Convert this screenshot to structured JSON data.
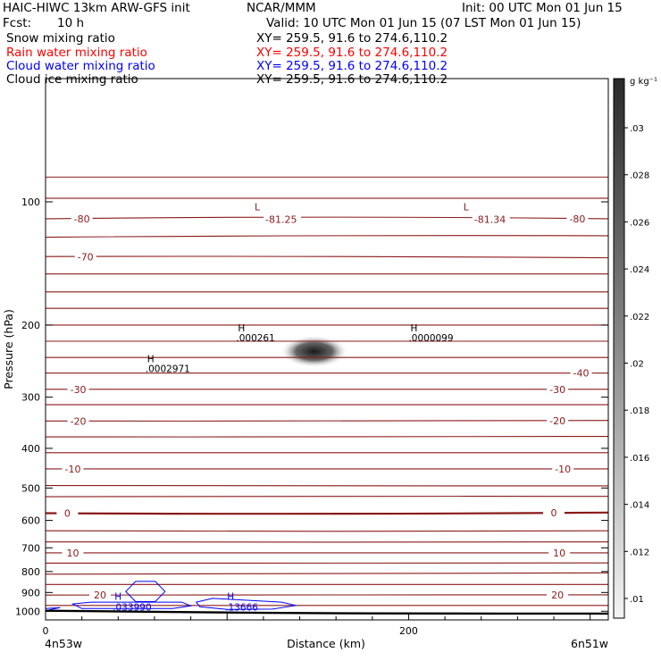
{
  "header": {
    "model": "HAIC-HIWC 13km ARW-GFS init",
    "org": "NCAR/MMM",
    "init": "Init: 00 UTC Mon 01 Jun 15",
    "fcst_label": "Fcst:",
    "fcst_value": "10 h",
    "valid": "Valid: 10 UTC Mon 01 Jun 15 (07 LST Mon 01 Jun 15)"
  },
  "fields": [
    {
      "name": "Snow mixing ratio",
      "xy": "XY= 259.5, 91.6 to 274.6,110.2",
      "color": "#000000"
    },
    {
      "name": "Rain water mixing ratio",
      "xy": "XY= 259.5, 91.6 to 274.6,110.2",
      "color": "#ff0000"
    },
    {
      "name": "Cloud water mixing ratio",
      "xy": "XY= 259.5, 91.6 to 274.6,110.2",
      "color": "#0000ff"
    },
    {
      "name": "Cloud ice mixing ratio",
      "xy": "XY= 259.5, 91.6 to 274.6,110.2",
      "color": "#000000"
    }
  ],
  "chart_data": {
    "type": "contour cross-section",
    "xlabel": "Distance (km)",
    "ylabel": "Pressure (hPa)",
    "xlim": [
      0,
      310
    ],
    "ylim": [
      1050,
      50
    ],
    "y_scale": "log",
    "x_ticks": [
      {
        "v": 0,
        "label": "0"
      },
      {
        "v": 200,
        "label": "200"
      }
    ],
    "x_endpoints": {
      "left": "4n53w",
      "right": "6n51w"
    },
    "y_ticks": [
      100,
      200,
      300,
      400,
      500,
      600,
      700,
      800,
      900,
      1000
    ],
    "temperature_color": "#8b1a1a",
    "temperature_isotherms": [
      {
        "p": [
          87,
          87,
          87
        ]
      },
      {
        "p": [
          98,
          98,
          98
        ]
      },
      {
        "p": [
          110,
          109,
          110
        ],
        "label": "-80",
        "label_x": [
          20,
          293
        ]
      },
      {
        "p": [
          122,
          121,
          121
        ]
      },
      {
        "p": [
          136,
          136,
          137
        ],
        "label": "-70",
        "label_x": [
          22
        ]
      },
      {
        "p": [
          150,
          150,
          150
        ]
      },
      {
        "p": [
          166,
          166,
          166
        ]
      },
      {
        "p": [
          182,
          182,
          182
        ]
      },
      {
        "p": [
          200,
          200,
          200
        ]
      },
      {
        "p": [
          219,
          219,
          219
        ]
      },
      {
        "p": [
          240,
          240,
          240
        ]
      },
      {
        "p": [
          262,
          262,
          262
        ],
        "label": "-40",
        "label_x": [
          295
        ]
      },
      {
        "p": [
          287,
          287,
          287
        ],
        "label": "-30",
        "label_x": [
          18,
          282
        ]
      },
      {
        "p": [
          313,
          313,
          313
        ]
      },
      {
        "p": [
          343,
          343,
          342
        ],
        "label": "-20",
        "label_x": [
          18,
          282
        ]
      },
      {
        "p": [
          375,
          375,
          374
        ]
      },
      {
        "p": [
          410,
          410,
          410
        ]
      },
      {
        "p": [
          449,
          449,
          449
        ],
        "label": "-10",
        "label_x": [
          15,
          285
        ]
      },
      {
        "p": [
          493,
          494,
          494
        ]
      },
      {
        "p": [
          576,
          578,
          574
        ],
        "label": "0",
        "label_x": [
          12,
          280
        ],
        "bold": true
      },
      {
        "p": [
          525,
          524,
          524
        ]
      },
      {
        "p": [
          636,
          638,
          636
        ]
      },
      {
        "p": [
          677,
          678,
          677
        ]
      },
      {
        "p": [
          720,
          720,
          720
        ],
        "label": "10",
        "label_x": [
          15,
          283
        ]
      },
      {
        "p": [
          763,
          763,
          762
        ]
      },
      {
        "p": [
          812,
          808,
          806
        ]
      },
      {
        "p": [
          860,
          860,
          860
        ]
      },
      {
        "p": [
          913,
          912,
          912
        ],
        "label": "20",
        "label_x": [
          30,
          282
        ]
      },
      {
        "p": [
          968,
          968,
          968
        ]
      }
    ],
    "pressure_extrema": [
      {
        "type": "L",
        "value": "-81.25",
        "x": 125,
        "p": 105
      },
      {
        "type": "L",
        "value": "-81.34",
        "x": 240,
        "p": 105
      }
    ],
    "snow_extrema": [
      {
        "type": "H",
        "value": ".000261",
        "x": 105,
        "p": 220
      },
      {
        "type": "H",
        "value": ".0000099",
        "x": 200,
        "p": 220
      },
      {
        "type": "H",
        "value": ".0002971",
        "x": 55,
        "p": 262
      }
    ],
    "cloud_water_extrema": [
      {
        "type": "H",
        "value": ".033990",
        "x": 38,
        "p": 967
      },
      {
        "type": "H",
        "value": ".13666",
        "x": 100,
        "p": 967
      }
    ],
    "shaded_max": {
      "x": 148,
      "p": 232,
      "value": 0.032
    },
    "terrain_p": [
      [
        0,
        997
      ],
      [
        60,
        1003
      ],
      [
        120,
        1009
      ],
      [
        180,
        1012
      ],
      [
        250,
        1013
      ],
      [
        310,
        1013
      ]
    ],
    "colorbar": {
      "unit": "g kg⁻¹",
      "ticks": [
        ".03",
        ".028",
        ".026",
        ".024",
        ".022",
        ".02",
        ".018",
        ".016",
        ".014",
        ".012",
        ".01"
      ],
      "range": [
        0.01,
        0.031
      ]
    }
  }
}
